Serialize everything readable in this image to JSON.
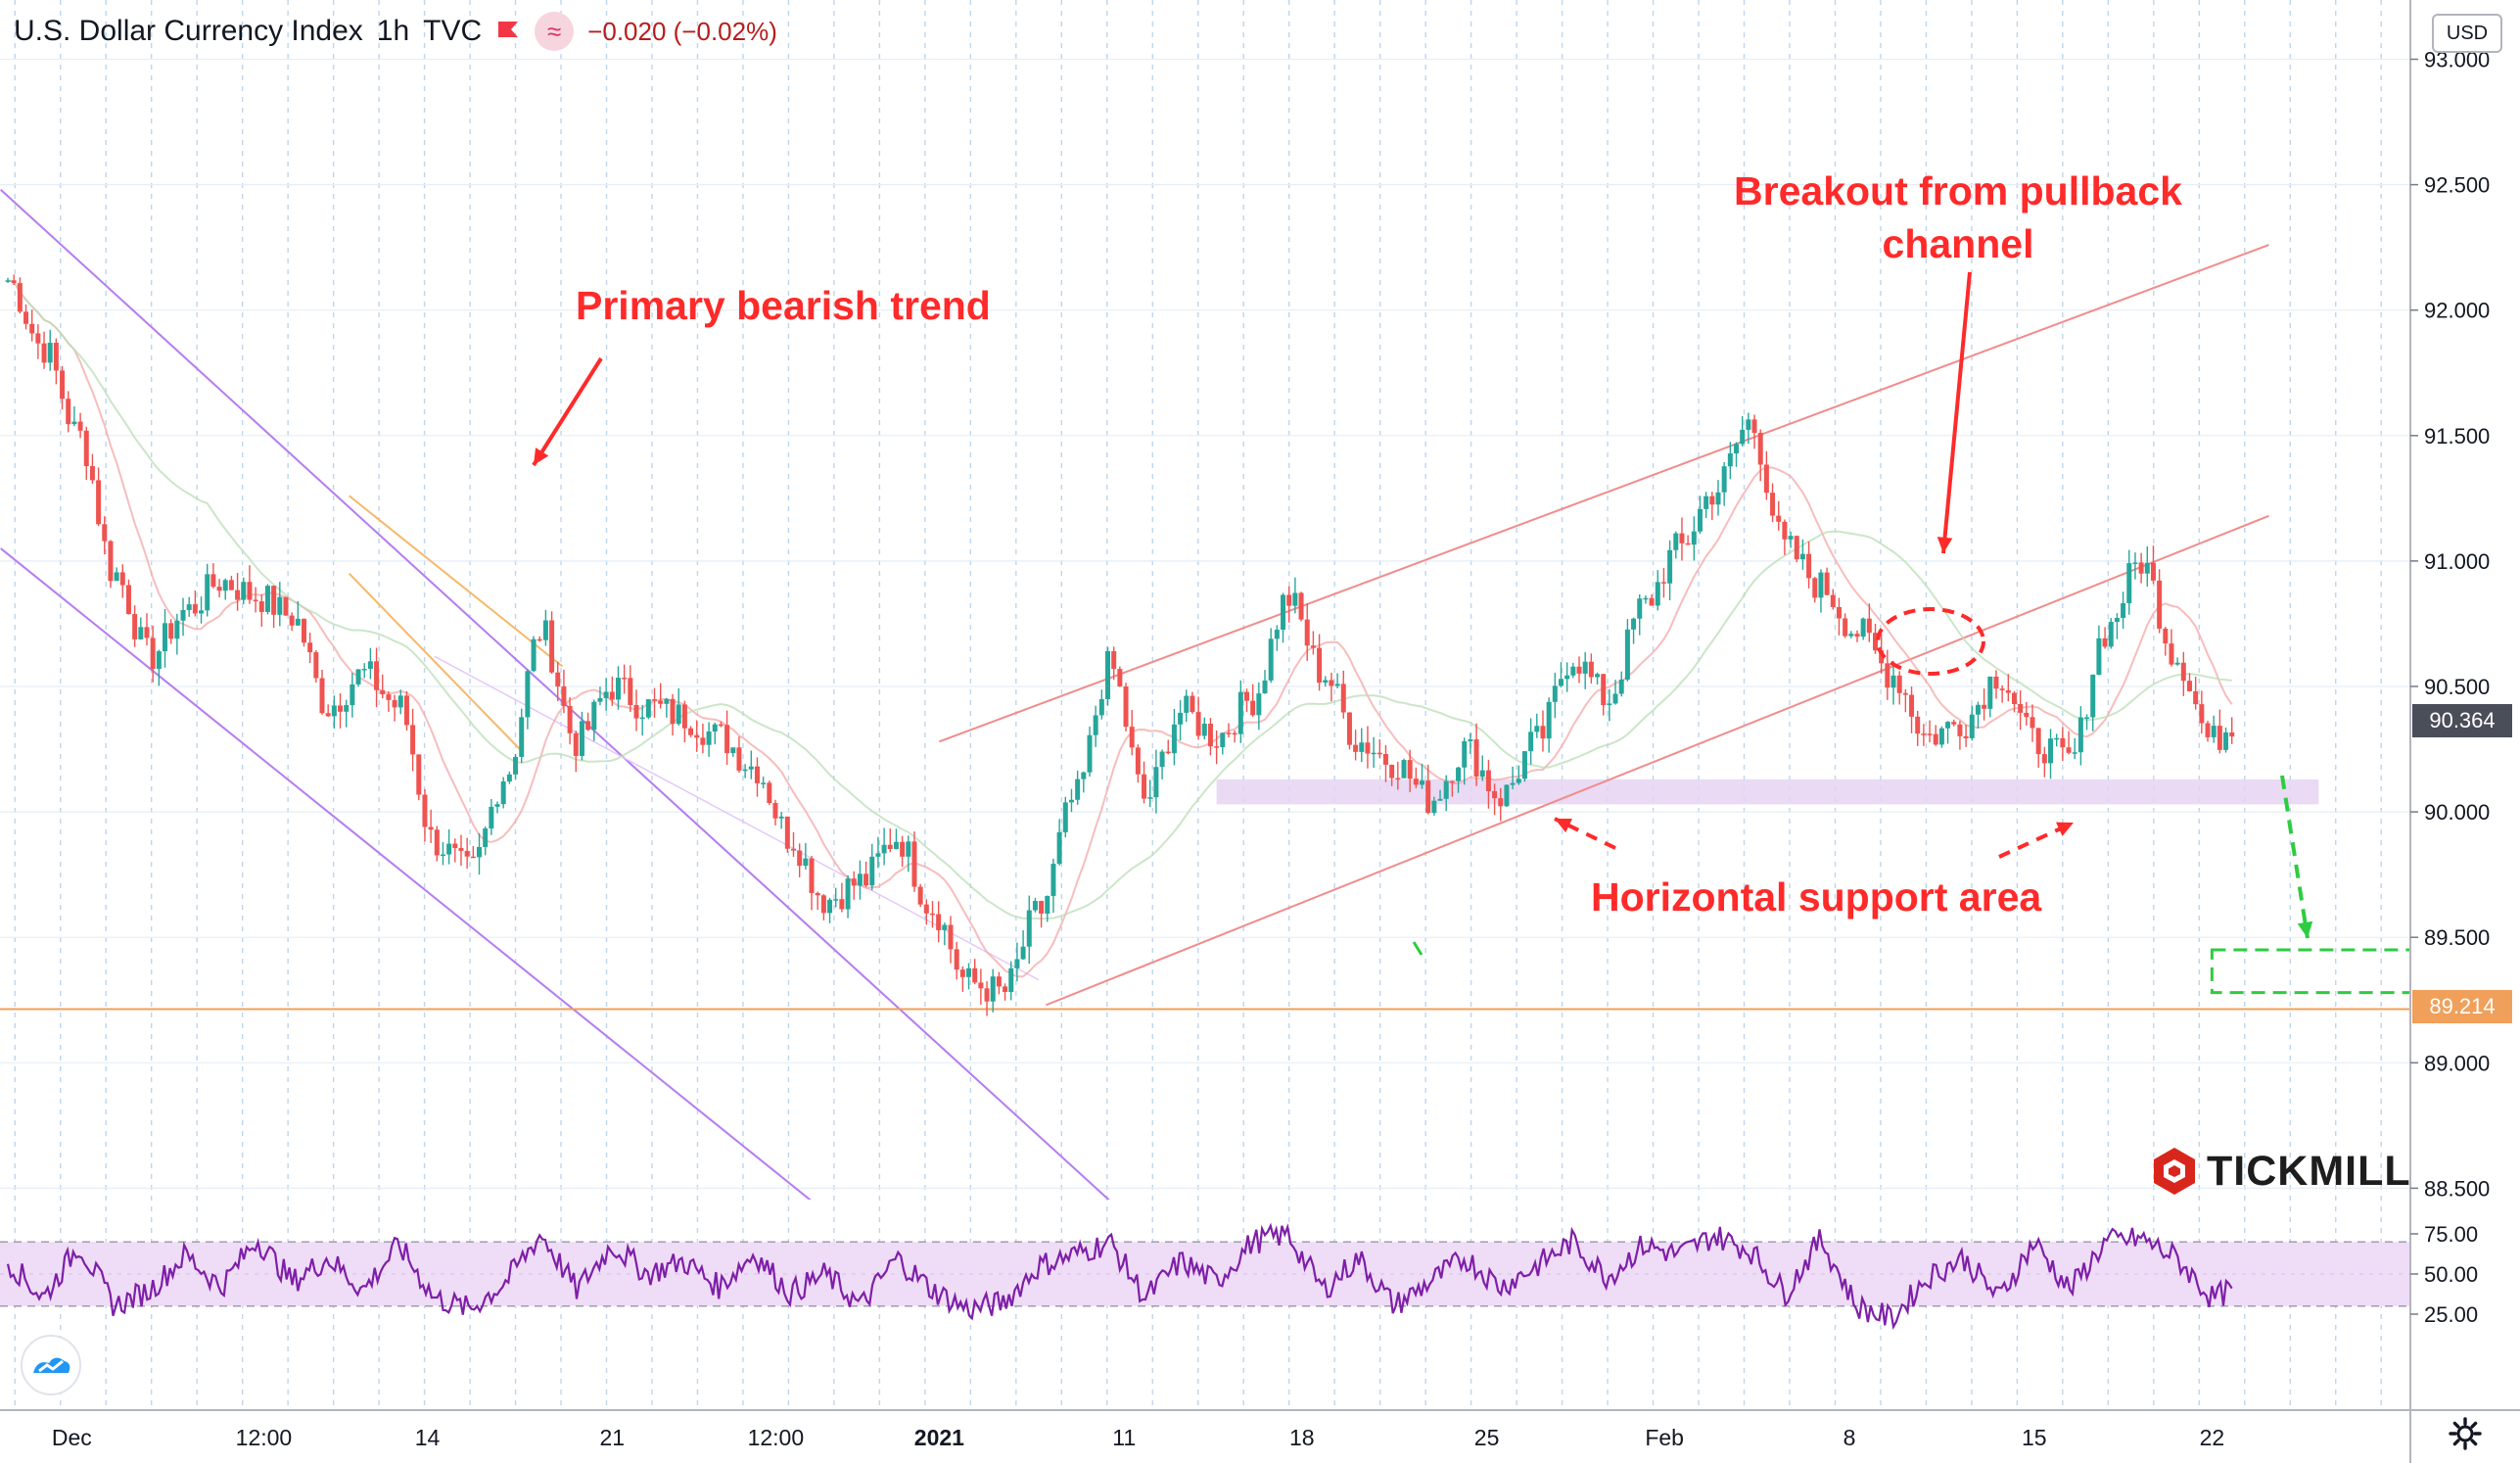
{
  "header": {
    "symbol": "U.S. Dollar Currency Index",
    "interval": "1h",
    "exchange": "TVC",
    "change": "−0.020 (−0.02%)",
    "flag_icon": "red-flag-icon",
    "indicator_icon": "wave-icon"
  },
  "currency_badge": "USD",
  "annotations": {
    "primary_trend": "Primary bearish trend",
    "breakout_line1": "Breakout from pullback",
    "breakout_line2": "channel",
    "support": "Horizontal support area"
  },
  "logo": {
    "text": "TICKMILL",
    "icon": "tickmill-hexagon-icon"
  },
  "price_labels": {
    "current": "90.364",
    "level": "89.214"
  },
  "colors": {
    "up_candle": "#26a69a",
    "down_candle": "#ef5350",
    "annotation_red": "#ff2a2a",
    "trend_purple": "#b57cf0",
    "channel_red": "#f28b8b",
    "support_zone": "#e6d3f2",
    "target_green": "#2ecc40",
    "rsi_line": "#7e1fa8",
    "rsi_band": "#efdcf7",
    "level_orange": "#f0a05a",
    "current_price_bg": "#4a4e59"
  },
  "chart_data": [
    {
      "type": "candlestick",
      "title": "U.S. Dollar Currency Index",
      "xlabel": "",
      "ylabel": "",
      "ylim": [
        88.4,
        93.1
      ],
      "y_ticks": [
        "93.000",
        "92.500",
        "92.000",
        "91.500",
        "91.000",
        "90.500",
        "90.000",
        "89.500",
        "89.000",
        "88.500"
      ],
      "x_ticks": [
        "Dec",
        "12:00",
        "14",
        "21",
        "12:00",
        "2021",
        "11",
        "18",
        "25",
        "Feb",
        "8",
        "15",
        "22"
      ],
      "x_tick_values": [
        0.9,
        3.6,
        5.9,
        8.5,
        10.8,
        13.1,
        15.7,
        18.2,
        20.8,
        23.3,
        25.9,
        28.5,
        31.0
      ],
      "series": [
        {
          "name": "",
          "x": [
            0,
            0.5,
            1,
            1.5,
            2,
            2.5,
            3,
            3.5,
            4,
            4.5,
            5,
            5.5,
            6,
            6.5,
            7,
            7.5,
            8,
            8.5,
            9,
            9.5,
            10,
            10.5,
            11,
            11.5,
            12,
            12.5,
            13,
            13.5,
            14,
            14.5,
            15,
            15.5,
            16,
            16.5,
            17,
            17.5,
            18,
            18.5,
            19,
            19.5,
            20,
            20.5,
            21,
            21.5,
            22,
            22.5,
            23,
            23.5,
            24,
            24.5,
            25,
            25.5,
            26,
            26.5,
            27,
            27.5,
            28,
            28.5,
            29,
            29.5,
            30,
            30.5,
            31,
            31.3
          ],
          "values": [
            92.12,
            91.85,
            91.5,
            90.95,
            90.62,
            90.8,
            90.92,
            90.86,
            90.78,
            90.42,
            90.55,
            90.42,
            89.88,
            89.76,
            90.15,
            90.72,
            90.28,
            90.5,
            90.42,
            90.38,
            90.3,
            90.18,
            89.9,
            89.65,
            89.72,
            89.9,
            89.62,
            89.32,
            89.28,
            89.6,
            90.05,
            90.58,
            90.05,
            90.4,
            90.3,
            90.45,
            90.85,
            90.55,
            90.28,
            90.2,
            90.05,
            90.25,
            90.06,
            90.28,
            90.62,
            90.45,
            90.82,
            91.05,
            91.28,
            91.55,
            91.05,
            90.9,
            90.72,
            90.55,
            90.3,
            90.36,
            90.55,
            90.28,
            90.2,
            90.72,
            91.0,
            90.62,
            90.28,
            90.36
          ]
        }
      ],
      "lines": {
        "primary_channel_upper": {
          "from": [
            -0.1,
            92.48
          ],
          "to": [
            15.5,
            88.45
          ]
        },
        "primary_channel_lower": {
          "from": [
            -0.1,
            91.05
          ],
          "to": [
            11.3,
            88.45
          ]
        },
        "pullback_upper": {
          "from": [
            13.1,
            90.28
          ],
          "to": [
            31.8,
            92.26
          ]
        },
        "pullback_lower": {
          "from": [
            14.6,
            89.23
          ],
          "to": [
            31.8,
            91.18
          ]
        },
        "short_channel_upper": {
          "from": [
            4.8,
            91.26
          ],
          "to": [
            7.8,
            90.58
          ]
        },
        "short_channel_lower": {
          "from": [
            4.8,
            90.95
          ],
          "to": [
            7.2,
            90.25
          ]
        },
        "resistance_level": 89.214
      },
      "support_zone": {
        "x_range": [
          17.0,
          32.5
        ],
        "y_range": [
          90.03,
          90.13
        ]
      },
      "target_box": {
        "x_range": [
          31.0,
          33.8
        ],
        "y_range": [
          89.28,
          89.45
        ]
      }
    },
    {
      "type": "line",
      "title": "",
      "xlabel": "",
      "ylabel": "",
      "ylim": [
        10,
        85
      ],
      "y_ticks": [
        "75.00",
        "50.00",
        "25.00"
      ],
      "band": [
        30,
        70
      ],
      "series": [
        {
          "name": "",
          "x": [
            0,
            0.5,
            1,
            1.5,
            2,
            2.5,
            3,
            3.5,
            4,
            4.5,
            5,
            5.5,
            6,
            6.5,
            7,
            7.5,
            8,
            8.5,
            9,
            9.5,
            10,
            10.5,
            11,
            11.5,
            12,
            12.5,
            13,
            13.5,
            14,
            14.5,
            15,
            15.5,
            16,
            16.5,
            17,
            17.5,
            18,
            18.5,
            19,
            19.5,
            20,
            20.5,
            21,
            21.5,
            22,
            22.5,
            23,
            23.5,
            24,
            24.5,
            25,
            25.5,
            26,
            26.5,
            27,
            27.5,
            28,
            28.5,
            29,
            29.5,
            30,
            30.5,
            31,
            31.3
          ],
          "values": [
            58,
            35,
            68,
            30,
            40,
            62,
            42,
            72,
            45,
            60,
            40,
            68,
            35,
            28,
            45,
            75,
            40,
            68,
            50,
            58,
            42,
            63,
            38,
            50,
            30,
            60,
            40,
            28,
            32,
            55,
            62,
            70,
            35,
            58,
            45,
            70,
            75,
            40,
            60,
            30,
            45,
            60,
            42,
            55,
            70,
            48,
            68,
            62,
            74,
            65,
            38,
            72,
            30,
            22,
            48,
            60,
            35,
            70,
            40,
            70,
            72,
            60,
            35,
            40
          ]
        }
      ]
    }
  ]
}
